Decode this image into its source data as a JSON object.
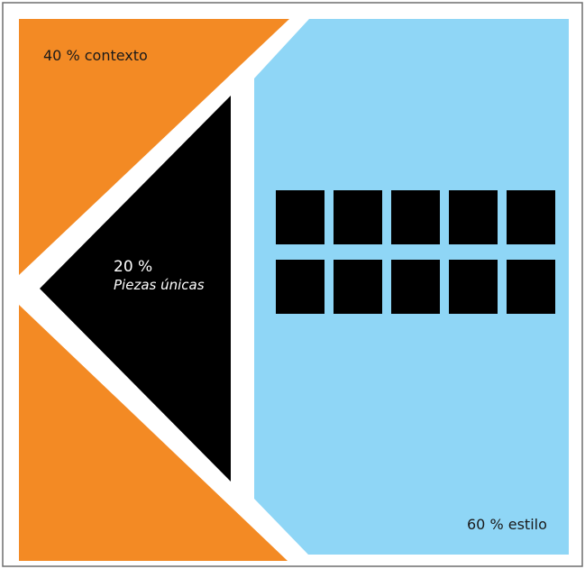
{
  "diagram": {
    "segments": [
      {
        "id": "context",
        "percent_label": "40 % contexto",
        "color": "#f38a24"
      },
      {
        "id": "unique",
        "percent_label": "20 %",
        "sublabel": "Piezas únicas",
        "color": "#000000"
      },
      {
        "id": "style",
        "percent_label": "60 % estilo",
        "color": "#8fd6f6"
      }
    ],
    "square_grid": {
      "rows": 2,
      "columns": 5,
      "color": "#000000"
    },
    "border_color": "#6e6e6e",
    "gap_color": "#ffffff"
  }
}
